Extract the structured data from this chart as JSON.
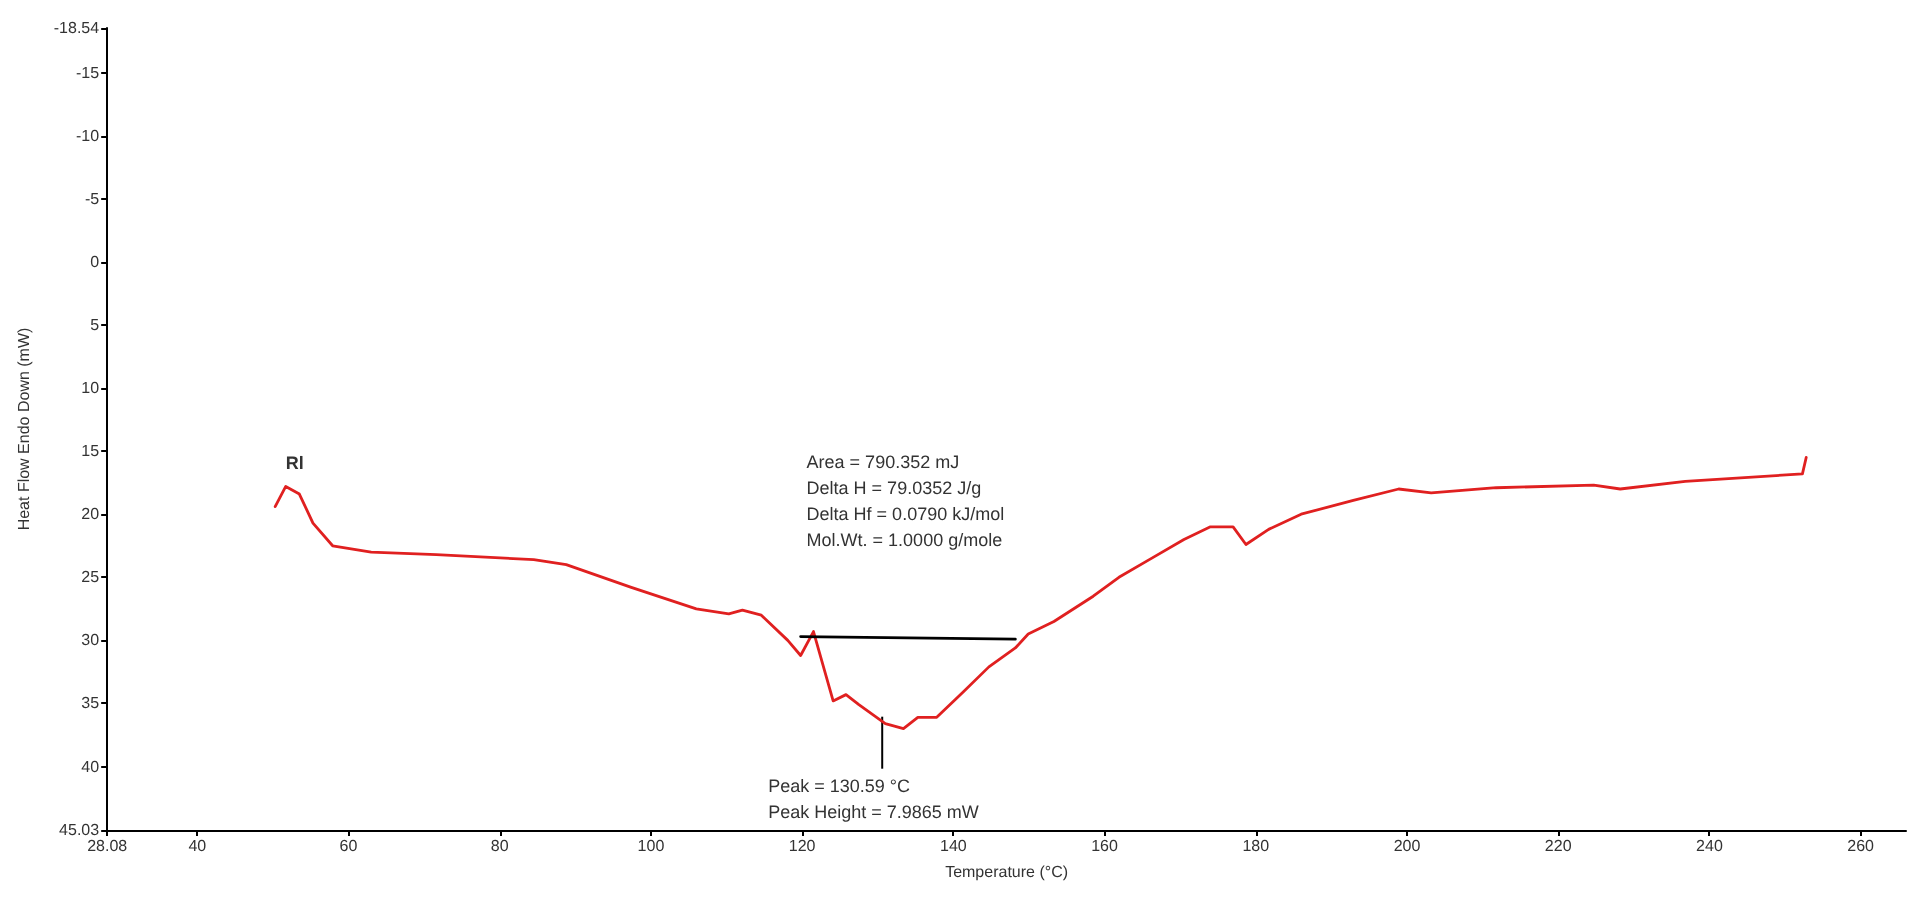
{
  "chart_data": {
    "type": "line",
    "xlabel": "Temperature (°C)",
    "ylabel": "Heat Flow Endo Down (mW)",
    "xlim": [
      28.08,
      266
    ],
    "xticks": [
      28.08,
      40,
      60,
      80,
      100,
      120,
      140,
      160,
      180,
      200,
      220,
      240,
      260
    ],
    "ylim": [
      45.03,
      -18.54
    ],
    "yticks": [
      -18.54,
      -15,
      -10,
      -5,
      0,
      5,
      10,
      15,
      20,
      25,
      30,
      35,
      40,
      45.03
    ],
    "grid": false,
    "marker": "none",
    "line_style": "solid",
    "series": [
      {
        "color": "#e02020",
        "x": [
          50.3,
          51.7,
          53.5,
          55.3,
          57.9,
          63.0,
          71.6,
          84.5,
          88.8,
          97.4,
          106.0,
          110.3,
          112.1,
          114.6,
          118.1,
          119.8,
          121.5,
          124.1,
          125.8,
          127.5,
          131.0,
          133.4,
          135.3,
          137.8,
          141.3,
          144.7,
          148.2,
          149.9,
          153.3,
          158.5,
          161.9,
          166.2,
          170.5,
          174.0,
          177.0,
          178.7,
          181.7,
          186.0,
          192.9,
          198.9,
          203.2,
          211.8,
          224.7,
          228.2,
          236.8,
          252.3,
          252.8
        ],
        "values": [
          19.4,
          17.8,
          18.4,
          20.7,
          22.5,
          23.0,
          23.2,
          23.6,
          24.0,
          25.8,
          27.5,
          27.9,
          27.6,
          28.0,
          30.0,
          31.2,
          29.3,
          34.8,
          34.3,
          35.1,
          36.6,
          37.0,
          36.1,
          36.1,
          34.1,
          32.1,
          30.6,
          29.5,
          28.5,
          26.5,
          25.0,
          23.5,
          22.0,
          21.0,
          21.0,
          22.4,
          21.2,
          20.0,
          18.9,
          18.0,
          18.3,
          17.9,
          17.7,
          18.0,
          17.4,
          16.8,
          15.5
        ]
      },
      {
        "color": "#000000",
        "x": [
          119.8,
          148.2
        ],
        "values": [
          29.7,
          29.9
        ]
      }
    ],
    "annotations": [
      {
        "text": "Rl",
        "x": 51.7,
        "y": 17.8
      },
      "Area = 790.352 mJ\nDelta H = 79.0352 J/g\nDelta Hf = 0.0790 kJ/mol\nMol.Wt. = 1.0000 g/mole",
      {
        "text": "Peak = 130.59 °C\nPeak Height = 7.9865 mW",
        "x": 130.59,
        "y": 37.0
      }
    ]
  }
}
